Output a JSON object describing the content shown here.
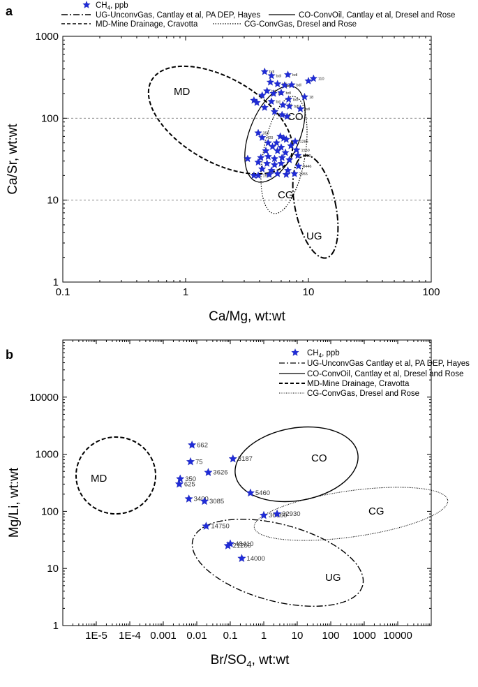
{
  "chart_data": [
    {
      "type": "scatter",
      "panel": "a",
      "xlabel": "Ca/Mg, wt:wt",
      "ylabel": "Ca/Sr, wt:wt",
      "xscale": "log",
      "yscale": "log",
      "xlim": [
        0.1,
        100
      ],
      "ylim": [
        1,
        1000
      ],
      "xticks": [
        "0.1",
        "1",
        "10",
        "100"
      ],
      "yticks": [
        "1",
        "10",
        "100",
        "1000"
      ],
      "reference_lines_y": [
        10,
        100
      ],
      "legend": {
        "marker": "CH",
        "marker_sub": "4",
        "marker_suffix": ", ppb",
        "entries": [
          {
            "style": "dashdot",
            "label": "UG-UnconvGas, Cantlay et al, PA DEP, Hayes"
          },
          {
            "style": "solid",
            "label": "CO-ConvOil, Cantlay et al, Dresel and Rose"
          },
          {
            "style": "dashed",
            "label": "MD-Mine Drainage, Cravotta"
          },
          {
            "style": "dotted",
            "label": "CG-ConvGas, Dresel and Rose"
          }
        ]
      },
      "regions": [
        {
          "label": "MD",
          "style": "dashed"
        },
        {
          "label": "CO",
          "style": "solid"
        },
        {
          "label": "CG",
          "style": "dotted"
        },
        {
          "label": "UG",
          "style": "dashdot"
        }
      ],
      "points": [
        {
          "x": 4.4,
          "y": 370,
          "label": "bdl"
        },
        {
          "x": 5.0,
          "y": 330,
          "label": "bdl"
        },
        {
          "x": 6.8,
          "y": 340,
          "label": "bdl"
        },
        {
          "x": 10.0,
          "y": 285,
          "label": ""
        },
        {
          "x": 11.0,
          "y": 305,
          "label": "110"
        },
        {
          "x": 4.9,
          "y": 275,
          "label": ""
        },
        {
          "x": 5.6,
          "y": 262,
          "label": "bdl"
        },
        {
          "x": 6.4,
          "y": 252,
          "label": ""
        },
        {
          "x": 7.3,
          "y": 255,
          "label": "bdl"
        },
        {
          "x": 4.6,
          "y": 215,
          "label": "bd"
        },
        {
          "x": 5.2,
          "y": 200,
          "label": "bd"
        },
        {
          "x": 6.0,
          "y": 205,
          "label": "bdl"
        },
        {
          "x": 4.2,
          "y": 190,
          "label": ""
        },
        {
          "x": 6.9,
          "y": 170,
          "label": "bdl"
        },
        {
          "x": 9.3,
          "y": 182,
          "label": "18"
        },
        {
          "x": 3.6,
          "y": 165,
          "label": ""
        },
        {
          "x": 3.8,
          "y": 155,
          "label": ""
        },
        {
          "x": 5.0,
          "y": 160,
          "label": "bd"
        },
        {
          "x": 6.2,
          "y": 145,
          "label": "bd"
        },
        {
          "x": 7.0,
          "y": 140,
          "label": "bdl"
        },
        {
          "x": 8.6,
          "y": 130,
          "label": "bdl"
        },
        {
          "x": 4.4,
          "y": 135,
          "label": ""
        },
        {
          "x": 5.3,
          "y": 120,
          "label": ""
        },
        {
          "x": 6.1,
          "y": 110,
          "label": ""
        },
        {
          "x": 6.7,
          "y": 105,
          "label": ""
        },
        {
          "x": 3.9,
          "y": 66,
          "label": "350"
        },
        {
          "x": 4.2,
          "y": 58,
          "label": "420"
        },
        {
          "x": 5.9,
          "y": 60,
          "label": ""
        },
        {
          "x": 6.3,
          "y": 57,
          "label": ""
        },
        {
          "x": 6.6,
          "y": 55,
          "label": ""
        },
        {
          "x": 4.7,
          "y": 50,
          "label": ""
        },
        {
          "x": 5.5,
          "y": 50,
          "label": ""
        },
        {
          "x": 7.8,
          "y": 52,
          "label": "1285"
        },
        {
          "x": 5.1,
          "y": 45,
          "label": ""
        },
        {
          "x": 6.0,
          "y": 44,
          "label": ""
        },
        {
          "x": 7.2,
          "y": 46,
          "label": ""
        },
        {
          "x": 4.5,
          "y": 40,
          "label": ""
        },
        {
          "x": 5.6,
          "y": 40,
          "label": ""
        },
        {
          "x": 6.5,
          "y": 38,
          "label": ""
        },
        {
          "x": 8.0,
          "y": 41,
          "label": "1550"
        },
        {
          "x": 3.2,
          "y": 32,
          "label": ""
        },
        {
          "x": 4.1,
          "y": 33,
          "label": ""
        },
        {
          "x": 4.7,
          "y": 34,
          "label": ""
        },
        {
          "x": 5.3,
          "y": 32,
          "label": ""
        },
        {
          "x": 6.1,
          "y": 33,
          "label": ""
        },
        {
          "x": 7.0,
          "y": 31,
          "label": ""
        },
        {
          "x": 8.2,
          "y": 35,
          "label": "1020"
        },
        {
          "x": 3.9,
          "y": 29,
          "label": ""
        },
        {
          "x": 4.6,
          "y": 28,
          "label": ""
        },
        {
          "x": 5.3,
          "y": 27,
          "label": ""
        },
        {
          "x": 6.0,
          "y": 28,
          "label": ""
        },
        {
          "x": 8.3,
          "y": 26,
          "label": "3446"
        },
        {
          "x": 4.2,
          "y": 24,
          "label": ""
        },
        {
          "x": 5.0,
          "y": 23,
          "label": ""
        },
        {
          "x": 6.8,
          "y": 23,
          "label": ""
        },
        {
          "x": 7.7,
          "y": 21,
          "label": "2955"
        },
        {
          "x": 3.6,
          "y": 20,
          "label": ""
        },
        {
          "x": 3.9,
          "y": 20,
          "label": "1900"
        },
        {
          "x": 4.8,
          "y": 20.5,
          "label": ""
        },
        {
          "x": 5.6,
          "y": 21,
          "label": ""
        },
        {
          "x": 6.6,
          "y": 20.5,
          "label": ""
        }
      ]
    },
    {
      "type": "scatter",
      "panel": "b",
      "xlabel": "Br/SO",
      "xlabel_sub": "4",
      "xlabel_suffix": ", wt:wt",
      "ylabel": "Mg/Li, wt:wt",
      "xscale": "log",
      "yscale": "log",
      "xlim": [
        1e-06,
        100000
      ],
      "ylim": [
        1,
        100000
      ],
      "xticks": [
        "1E-5",
        "1E-4",
        "0.001",
        "0.01",
        "0.1",
        "1",
        "10",
        "100",
        "1000",
        "10000"
      ],
      "yticks": [
        "1",
        "10",
        "100",
        "1000",
        "10000"
      ],
      "legend": {
        "marker": "CH",
        "marker_sub": "4",
        "marker_suffix": ", ppb",
        "entries": [
          {
            "style": "dashdot",
            "label": "UG-UnconvGas Cantlay et al, PA DEP, Hayes"
          },
          {
            "style": "solid",
            "label": "CO-ConvOil, Cantlay et al, Dresel and Rose"
          },
          {
            "style": "dashed",
            "label": "MD-Mine Drainage, Cravotta"
          },
          {
            "style": "dotted",
            "label": "CG-ConvGas, Dresel and Rose"
          }
        ]
      },
      "regions": [
        {
          "label": "MD",
          "style": "dashed"
        },
        {
          "label": "CO",
          "style": "solid"
        },
        {
          "label": "CG",
          "style": "dotted"
        },
        {
          "label": "UG",
          "style": "dashdot"
        }
      ],
      "points": [
        {
          "x": 0.0072,
          "y": 1450,
          "label": "662"
        },
        {
          "x": 0.0065,
          "y": 740,
          "label": "75"
        },
        {
          "x": 0.12,
          "y": 830,
          "label": "3187"
        },
        {
          "x": 0.022,
          "y": 480,
          "label": "3626"
        },
        {
          "x": 0.0032,
          "y": 370,
          "label": "350"
        },
        {
          "x": 0.003,
          "y": 300,
          "label": "625"
        },
        {
          "x": 0.4,
          "y": 210,
          "label": "5460"
        },
        {
          "x": 0.0058,
          "y": 165,
          "label": "3400"
        },
        {
          "x": 0.017,
          "y": 150,
          "label": "3085"
        },
        {
          "x": 1.0,
          "y": 85,
          "label": "36660"
        },
        {
          "x": 2.5,
          "y": 90,
          "label": "32930"
        },
        {
          "x": 0.019,
          "y": 55,
          "label": "14750"
        },
        {
          "x": 0.1,
          "y": 27,
          "label": "48410"
        },
        {
          "x": 0.085,
          "y": 25,
          "label": "21200"
        },
        {
          "x": 0.22,
          "y": 15,
          "label": "14000"
        }
      ]
    }
  ]
}
